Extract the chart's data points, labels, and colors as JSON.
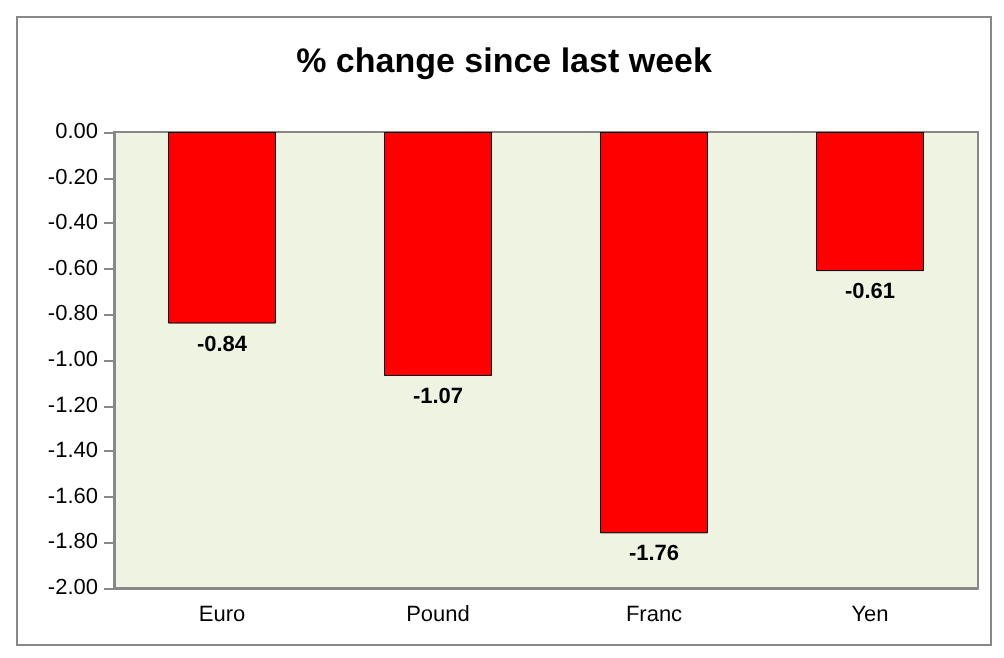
{
  "chart_data": {
    "type": "bar",
    "title": "% change since last week",
    "categories": [
      "Euro",
      "Pound",
      "Franc",
      "Yen"
    ],
    "values": [
      -0.84,
      -1.07,
      -1.76,
      -0.61
    ],
    "color": "#ff0000",
    "ylim": [
      -2,
      0
    ],
    "yticks": [
      {
        "value": 0,
        "label": "0.00"
      },
      {
        "value": -0.2,
        "label": "-0.20"
      },
      {
        "value": -0.4,
        "label": "-0.40"
      },
      {
        "value": -0.6,
        "label": "-0.60"
      },
      {
        "value": -0.8,
        "label": "-0.80"
      },
      {
        "value": -1,
        "label": "-1.00"
      },
      {
        "value": -1.2,
        "label": "-1.20"
      },
      {
        "value": -1.4,
        "label": "-1.40"
      },
      {
        "value": -1.6,
        "label": "-1.60"
      },
      {
        "value": -1.8,
        "label": "-1.80"
      },
      {
        "value": -2,
        "label": "-2.00"
      }
    ],
    "data_labels": true,
    "grid": false
  }
}
